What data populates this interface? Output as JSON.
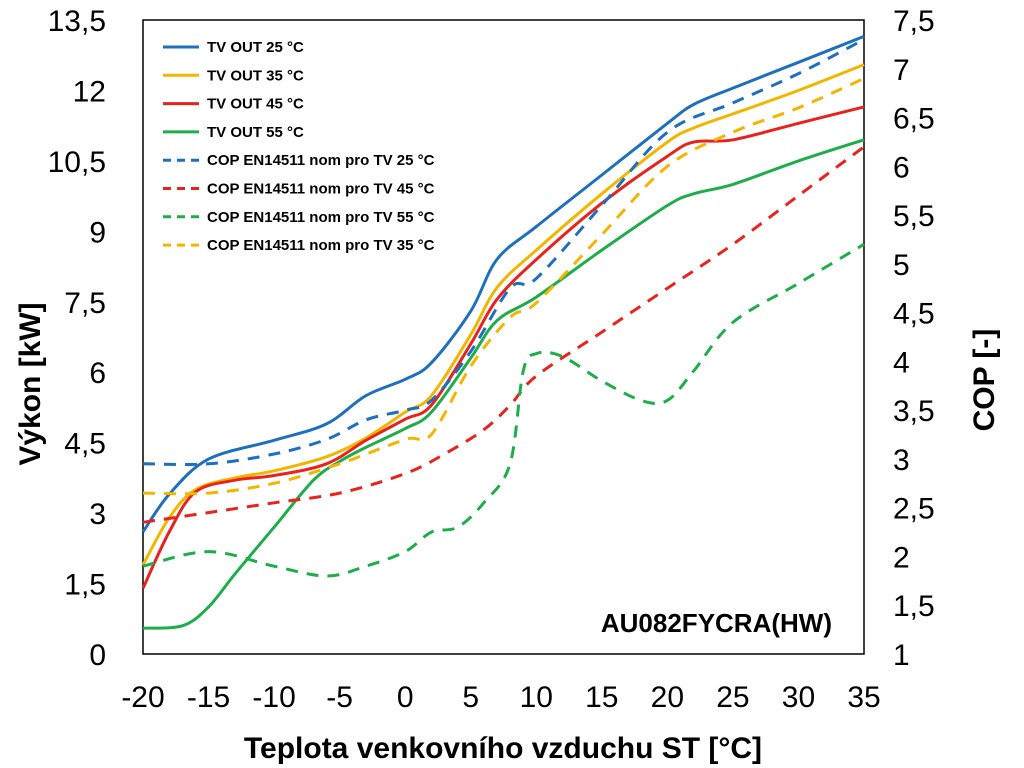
{
  "chart_data": {
    "type": "line",
    "title": "",
    "annotation": "AU082FYCRA(HW)",
    "xlabel": "Teplota venkovního vzduchu ST [°C]",
    "ylabel": "Výkon [kW]",
    "y2label": "COP [-]",
    "xlim": [
      -20,
      35
    ],
    "ylim": [
      0,
      13.5
    ],
    "y2lim": [
      1,
      7.5
    ],
    "xticks": [
      "-20",
      "-15",
      "-10",
      "-5",
      "0",
      "5",
      "10",
      "15",
      "20",
      "25",
      "30",
      "35"
    ],
    "yticks": [
      "0",
      "1,5",
      "3",
      "4,5",
      "6",
      "7,5",
      "9",
      "10,5",
      "12",
      "13,5"
    ],
    "y2ticks": [
      "1",
      "1,5",
      "2",
      "2,5",
      "3",
      "3,5",
      "4",
      "4,5",
      "5",
      "5,5",
      "6",
      "6,5",
      "7",
      "7,5"
    ],
    "grid": false,
    "legend_position": "top-left",
    "series": [
      {
        "name": "TV OUT 25 °C",
        "axis": "left",
        "style": "solid",
        "color": "#1f6fbf",
        "points": [
          [
            -20,
            2.6
          ],
          [
            -18,
            3.4
          ],
          [
            -15,
            4.15
          ],
          [
            -10,
            4.55
          ],
          [
            -6,
            4.9
          ],
          [
            -3,
            5.5
          ],
          [
            0,
            5.85
          ],
          [
            2,
            6.2
          ],
          [
            5,
            7.3
          ],
          [
            7,
            8.4
          ],
          [
            10,
            9.1
          ],
          [
            15,
            10.2
          ],
          [
            20,
            11.3
          ],
          [
            22,
            11.7
          ],
          [
            25,
            12.05
          ],
          [
            30,
            12.6
          ],
          [
            35,
            13.15
          ]
        ]
      },
      {
        "name": "TV OUT 35 °C",
        "axis": "left",
        "style": "solid",
        "color": "#f2b600",
        "points": [
          [
            -20,
            1.9
          ],
          [
            -18,
            2.9
          ],
          [
            -16,
            3.5
          ],
          [
            -13,
            3.75
          ],
          [
            -10,
            3.9
          ],
          [
            -6,
            4.2
          ],
          [
            -3,
            4.6
          ],
          [
            0,
            5.15
          ],
          [
            2,
            5.5
          ],
          [
            5,
            6.8
          ],
          [
            7,
            7.8
          ],
          [
            10,
            8.6
          ],
          [
            15,
            9.8
          ],
          [
            20,
            10.9
          ],
          [
            22,
            11.2
          ],
          [
            25,
            11.5
          ],
          [
            30,
            12
          ],
          [
            35,
            12.55
          ]
        ]
      },
      {
        "name": "TV OUT 45 °C",
        "axis": "left",
        "style": "solid",
        "color": "#e8231e",
        "points": [
          [
            -20,
            1.4
          ],
          [
            -18,
            2.6
          ],
          [
            -16,
            3.45
          ],
          [
            -13,
            3.7
          ],
          [
            -10,
            3.8
          ],
          [
            -6,
            4.05
          ],
          [
            -3,
            4.55
          ],
          [
            0,
            5
          ],
          [
            2,
            5.3
          ],
          [
            5,
            6.6
          ],
          [
            7,
            7.55
          ],
          [
            10,
            8.4
          ],
          [
            15,
            9.6
          ],
          [
            20,
            10.6
          ],
          [
            22,
            10.9
          ],
          [
            25,
            10.95
          ],
          [
            30,
            11.3
          ],
          [
            35,
            11.65
          ]
        ]
      },
      {
        "name": "TV OUT 55 °C",
        "axis": "left",
        "style": "solid",
        "color": "#1fad4c",
        "points": [
          [
            -20,
            0.55
          ],
          [
            -17,
            0.6
          ],
          [
            -15,
            1
          ],
          [
            -13,
            1.7
          ],
          [
            -10,
            2.7
          ],
          [
            -7,
            3.7
          ],
          [
            -5,
            4.1
          ],
          [
            -3,
            4.4
          ],
          [
            0,
            4.8
          ],
          [
            2,
            5.15
          ],
          [
            5,
            6.3
          ],
          [
            7,
            7.1
          ],
          [
            10,
            7.6
          ],
          [
            15,
            8.6
          ],
          [
            20,
            9.55
          ],
          [
            22,
            9.8
          ],
          [
            25,
            10
          ],
          [
            30,
            10.5
          ],
          [
            35,
            10.95
          ]
        ]
      }
    ],
    "cop_series": [
      {
        "name": "COP EN14511 nom pro TV 25 °C",
        "axis": "right",
        "style": "dashed",
        "color": "#1f6fbf",
        "points": [
          [
            -20,
            2.95
          ],
          [
            -15,
            2.95
          ],
          [
            -10,
            3.05
          ],
          [
            -6,
            3.2
          ],
          [
            -3,
            3.4
          ],
          [
            0,
            3.5
          ],
          [
            2,
            3.6
          ],
          [
            5,
            4.1
          ],
          [
            8,
            4.75
          ],
          [
            10,
            4.85
          ],
          [
            15,
            5.6
          ],
          [
            20,
            6.35
          ],
          [
            25,
            6.65
          ],
          [
            30,
            6.95
          ],
          [
            35,
            7.3
          ]
        ]
      },
      {
        "name": "COP EN14511 nom pro TV 45 °C",
        "axis": "right",
        "style": "dashed",
        "color": "#e8231e",
        "points": [
          [
            -20,
            2.35
          ],
          [
            -15,
            2.45
          ],
          [
            -10,
            2.55
          ],
          [
            -5,
            2.65
          ],
          [
            0,
            2.85
          ],
          [
            3,
            3.05
          ],
          [
            6,
            3.3
          ],
          [
            8,
            3.55
          ],
          [
            10,
            3.85
          ],
          [
            15,
            4.3
          ],
          [
            20,
            4.75
          ],
          [
            25,
            5.2
          ],
          [
            30,
            5.7
          ],
          [
            35,
            6.2
          ]
        ]
      },
      {
        "name": "COP EN14511 nom pro TV 55 °C",
        "axis": "right",
        "style": "dashed",
        "color": "#1fad4c",
        "points": [
          [
            -20,
            1.9
          ],
          [
            -15,
            2.05
          ],
          [
            -10,
            1.9
          ],
          [
            -6,
            1.8
          ],
          [
            -3,
            1.9
          ],
          [
            0,
            2.05
          ],
          [
            2,
            2.25
          ],
          [
            4,
            2.3
          ],
          [
            6,
            2.55
          ],
          [
            8,
            2.95
          ],
          [
            9,
            3.9
          ],
          [
            10,
            4.08
          ],
          [
            12,
            4.05
          ],
          [
            15,
            3.8
          ],
          [
            18,
            3.6
          ],
          [
            20,
            3.6
          ],
          [
            22,
            3.9
          ],
          [
            25,
            4.4
          ],
          [
            30,
            4.8
          ],
          [
            35,
            5.2
          ]
        ]
      },
      {
        "name": "COP EN14511 nom pro TV 35 °C",
        "axis": "right",
        "style": "dashed",
        "color": "#f2b600",
        "points": [
          [
            -20,
            2.65
          ],
          [
            -15,
            2.65
          ],
          [
            -10,
            2.75
          ],
          [
            -5,
            2.95
          ],
          [
            0,
            3.2
          ],
          [
            2,
            3.25
          ],
          [
            5,
            3.95
          ],
          [
            8,
            4.45
          ],
          [
            10,
            4.6
          ],
          [
            15,
            5.3
          ],
          [
            20,
            6
          ],
          [
            25,
            6.35
          ],
          [
            30,
            6.6
          ],
          [
            35,
            6.9
          ]
        ]
      }
    ],
    "legend_order": [
      "TV OUT 25 °C",
      "TV OUT 35 °C",
      "TV OUT 45 °C",
      "TV OUT 55 °C",
      "COP EN14511 nom pro TV 25 °C",
      "COP EN14511 nom pro TV 45 °C",
      "COP EN14511 nom pro TV 55 °C",
      "COP EN14511 nom pro TV 35 °C"
    ]
  }
}
